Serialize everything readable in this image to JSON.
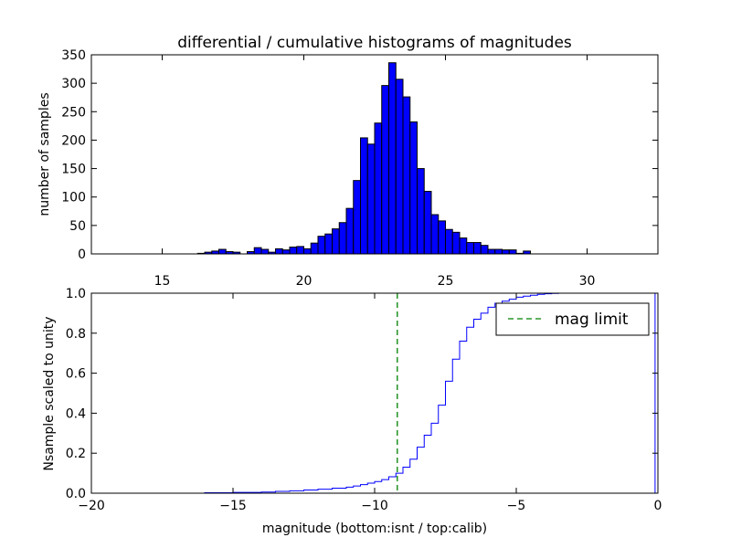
{
  "chart_data": [
    {
      "type": "bar",
      "title": "differential / cumulative histograms of magnitudes",
      "ylabel": "number of samples",
      "xlim": [
        12.5,
        32.5
      ],
      "ylim": [
        0,
        350
      ],
      "xticks": [
        15,
        20,
        25,
        30
      ],
      "yticks": [
        0,
        50,
        100,
        150,
        200,
        250,
        300,
        350
      ],
      "bar_color": "#0000ff",
      "bin_width": 0.25,
      "bin_start": 16.25,
      "values": [
        1,
        3,
        5,
        8,
        4,
        3,
        0,
        4,
        11,
        8,
        3,
        9,
        7,
        12,
        13,
        9,
        19,
        31,
        35,
        44,
        55,
        80,
        129,
        204,
        193,
        230,
        296,
        336,
        307,
        276,
        232,
        150,
        110,
        69,
        58,
        43,
        38,
        28,
        20,
        20,
        15,
        8,
        8,
        7,
        7,
        1,
        5
      ],
      "grid": false
    },
    {
      "type": "line",
      "xlabel": "magnitude (bottom:isnt / top:calib)",
      "ylabel": "Nsample scaled to unity",
      "xlim": [
        -20,
        0
      ],
      "ylim": [
        0,
        1.0
      ],
      "xticks": [
        -20,
        -15,
        -10,
        -5,
        0
      ],
      "yticks": [
        0.0,
        0.2,
        0.4,
        0.6,
        0.8,
        1.0
      ],
      "series": [
        {
          "color": "#0000ff",
          "style": "step",
          "x": [
            -20,
            -16,
            -15,
            -14,
            -13.5,
            -13,
            -12.5,
            -12,
            -11.5,
            -11,
            -10.75,
            -10.5,
            -10.25,
            -10,
            -9.75,
            -9.5,
            -9.25,
            -9,
            -8.75,
            -8.5,
            -8.25,
            -8,
            -7.75,
            -7.5,
            -7.25,
            -7,
            -6.75,
            -6.5,
            -6.25,
            -6,
            -5.75,
            -5.5,
            -5.25,
            -5,
            -4.75,
            -4.5,
            -4.25,
            -4,
            -3.75,
            -3.5,
            -0.1
          ],
          "y": [
            0,
            0.002,
            0.004,
            0.006,
            0.009,
            0.012,
            0.016,
            0.02,
            0.025,
            0.03,
            0.036,
            0.043,
            0.05,
            0.058,
            0.068,
            0.082,
            0.1,
            0.13,
            0.17,
            0.23,
            0.29,
            0.35,
            0.44,
            0.56,
            0.67,
            0.76,
            0.83,
            0.87,
            0.9,
            0.93,
            0.95,
            0.96,
            0.97,
            0.98,
            0.985,
            0.99,
            0.994,
            0.997,
            0.999,
            1.0,
            1.0
          ]
        },
        {
          "name": "mag limit",
          "color": "#008000",
          "style": "dashed-vline",
          "x_value": -9.2
        }
      ],
      "legend": "upper-right",
      "grid": false
    }
  ]
}
